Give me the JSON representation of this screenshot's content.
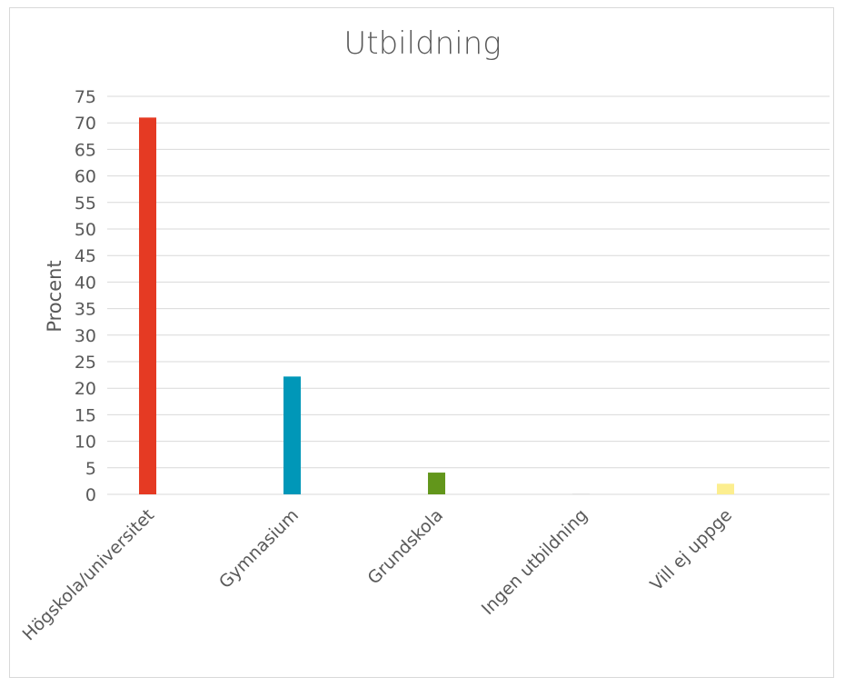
{
  "chart_data": {
    "type": "bar",
    "title": "Utbildning",
    "xlabel": "",
    "ylabel": "Procent",
    "ylim": [
      0,
      75
    ],
    "yticks": [
      0,
      5,
      10,
      15,
      20,
      25,
      30,
      35,
      40,
      45,
      50,
      55,
      60,
      65,
      70,
      75
    ],
    "grid": true,
    "categories": [
      "Högskola/universitet",
      "Gymnasium",
      "Grundskola",
      "Ingen utbildning",
      "Vill ej uppge"
    ],
    "values": [
      71,
      22.2,
      4.1,
      0.1,
      2
    ],
    "colors": [
      "#e53a23",
      "#0097b8",
      "#62961b",
      "#cccccc",
      "#fcee8f"
    ]
  }
}
